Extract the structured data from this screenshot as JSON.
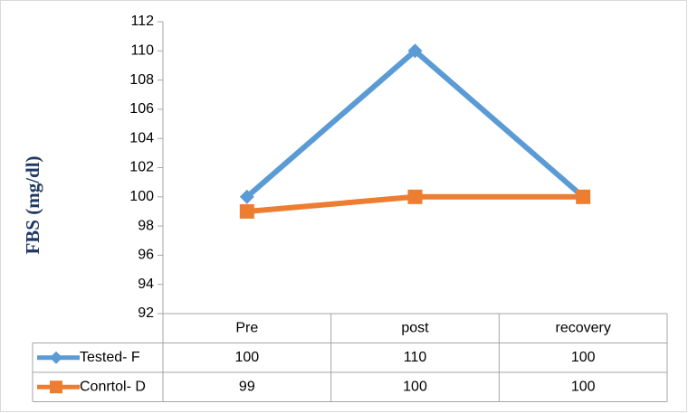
{
  "chart_data": {
    "type": "line",
    "y_axis_label": "FBS (mg/dl)",
    "categories": [
      "Pre",
      "post",
      "recovery"
    ],
    "series": [
      {
        "name": "Tested- F",
        "color": "#5b9bd5",
        "marker": "diamond",
        "values": [
          100,
          110,
          100
        ]
      },
      {
        "name": "Conrtol- D",
        "color": "#ed7d31",
        "marker": "square",
        "values": [
          99,
          100,
          100
        ]
      }
    ],
    "ylim": [
      92,
      112
    ],
    "yticks": [
      92,
      94,
      96,
      98,
      100,
      102,
      104,
      106,
      108,
      110,
      112
    ],
    "grid": false,
    "data_table": true
  }
}
